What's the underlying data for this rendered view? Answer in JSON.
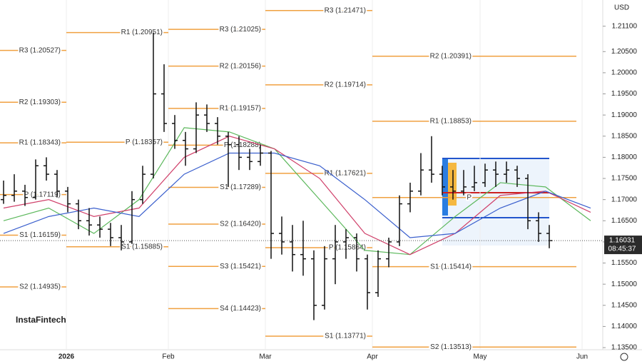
{
  "chart_data": {
    "type": "ohlc",
    "currency": "USD",
    "brand": "InstaFintech",
    "time_labels": [
      "2026",
      "Feb",
      "Mar",
      "Apr",
      "May",
      "Jun"
    ],
    "ylim": [
      1.1345,
      1.2172
    ],
    "yticks": [
      {
        "value": 1.211,
        "label": "1.21100"
      },
      {
        "value": 1.205,
        "label": "1.20500"
      },
      {
        "value": 1.2,
        "label": "1.20000"
      },
      {
        "value": 1.195,
        "label": "1.19500"
      },
      {
        "value": 1.19,
        "label": "1.19000"
      },
      {
        "value": 1.185,
        "label": "1.18500"
      },
      {
        "value": 1.18,
        "label": "1.18000"
      },
      {
        "value": 1.175,
        "label": "1.17500"
      },
      {
        "value": 1.17,
        "label": "1.17000"
      },
      {
        "value": 1.165,
        "label": "1.16500"
      },
      {
        "value": 1.16,
        "label": "1.16000"
      },
      {
        "value": 1.155,
        "label": "1.15500"
      },
      {
        "value": 1.15,
        "label": "1.15000"
      },
      {
        "value": 1.145,
        "label": "1.14500"
      },
      {
        "value": 1.14,
        "label": "1.14000"
      },
      {
        "value": 1.135,
        "label": "1.13500"
      }
    ],
    "last_price": {
      "value": 1.16031,
      "label": "1.16031",
      "countdown": "08:45:37"
    },
    "pivot_color": "#f0a040",
    "pivots": [
      [
        {
          "label": "R3 (1.20527)",
          "value": 1.20527
        },
        {
          "label": "R2 (1.19303)",
          "value": 1.19303
        },
        {
          "label": "R1 (1.18343)",
          "value": 1.18343
        },
        {
          "label": "P (1.17119)",
          "value": 1.17119
        },
        {
          "label": "S1 (1.16159)",
          "value": 1.16159
        },
        {
          "label": "S2 (1.14935)",
          "value": 1.14935
        }
      ],
      [
        {
          "label": "R1 (1.20951)",
          "value": 1.20951
        },
        {
          "label": "P (1.18357)",
          "value": 1.18357
        },
        {
          "label": "S1 (1.15885)",
          "value": 1.15885
        }
      ],
      [
        {
          "label": "R3 (1.21025)",
          "value": 1.21025
        },
        {
          "label": "R2 (1.20156)",
          "value": 1.20156
        },
        {
          "label": "R1 (1.19157)",
          "value": 1.19157
        },
        {
          "label": "P (1.18288)",
          "value": 1.18288
        },
        {
          "label": "S1 (1.17289)",
          "value": 1.17289
        },
        {
          "label": "S2 (1.16420)",
          "value": 1.1642
        },
        {
          "label": "S3 (1.15421)",
          "value": 1.15421
        },
        {
          "label": "S4 (1.14423)",
          "value": 1.14423
        }
      ],
      [
        {
          "label": "R3 (1.21471)",
          "value": 1.21471
        },
        {
          "label": "R2 (1.19714)",
          "value": 1.19714
        },
        {
          "label": "R1 (1.17621)",
          "value": 1.17621
        },
        {
          "label": "P (1.15864)",
          "value": 1.15864
        },
        {
          "label": "S1 (1.13771)",
          "value": 1.13771
        }
      ],
      [
        {
          "label": "R2 (1.20391)",
          "value": 1.20391
        },
        {
          "label": "R1 (1.18853)",
          "value": 1.18853
        },
        {
          "label": "P",
          "value": 1.1705
        },
        {
          "label": "S1 (1.15414)",
          "value": 1.15414
        },
        {
          "label": "S2 (1.13513)",
          "value": 1.13513
        }
      ]
    ],
    "ohlc": [
      [
        1.17,
        1.1745,
        1.169,
        1.171
      ],
      [
        1.171,
        1.176,
        1.1695,
        1.172
      ],
      [
        1.172,
        1.1735,
        1.1685,
        1.1705
      ],
      [
        1.1705,
        1.1795,
        1.17,
        1.178
      ],
      [
        1.178,
        1.18,
        1.1745,
        1.176
      ],
      [
        1.176,
        1.177,
        1.1705,
        1.172
      ],
      [
        1.172,
        1.173,
        1.167,
        1.169
      ],
      [
        1.169,
        1.17,
        1.163,
        1.165
      ],
      [
        1.165,
        1.168,
        1.1615,
        1.164
      ],
      [
        1.164,
        1.166,
        1.161,
        1.163
      ],
      [
        1.163,
        1.1645,
        1.159,
        1.161
      ],
      [
        1.161,
        1.164,
        1.158,
        1.16
      ],
      [
        1.16,
        1.172,
        1.1595,
        1.17
      ],
      [
        1.17,
        1.178,
        1.169,
        1.176
      ],
      [
        1.176,
        1.2095,
        1.175,
        1.195
      ],
      [
        1.195,
        1.202,
        1.186,
        1.188
      ],
      [
        1.188,
        1.19,
        1.182,
        1.184
      ],
      [
        1.184,
        1.186,
        1.178,
        1.182
      ],
      [
        1.182,
        1.193,
        1.181,
        1.19
      ],
      [
        1.19,
        1.1925,
        1.186,
        1.188
      ],
      [
        1.188,
        1.1895,
        1.183,
        1.185
      ],
      [
        1.185,
        1.186,
        1.173,
        1.183
      ],
      [
        1.183,
        1.185,
        1.177,
        1.18
      ],
      [
        1.18,
        1.182,
        1.177,
        1.179
      ],
      [
        1.179,
        1.183,
        1.178,
        1.181
      ],
      [
        1.181,
        1.1815,
        1.156,
        1.162
      ],
      [
        1.162,
        1.166,
        1.157,
        1.16
      ],
      [
        1.16,
        1.164,
        1.153,
        1.157
      ],
      [
        1.157,
        1.165,
        1.152,
        1.156
      ],
      [
        1.156,
        1.158,
        1.1415,
        1.145
      ],
      [
        1.145,
        1.159,
        1.144,
        1.156
      ],
      [
        1.156,
        1.164,
        1.15,
        1.16
      ],
      [
        1.16,
        1.163,
        1.156,
        1.161
      ],
      [
        1.161,
        1.162,
        1.153,
        1.156
      ],
      [
        1.156,
        1.157,
        1.144,
        1.148
      ],
      [
        1.148,
        1.158,
        1.147,
        1.156
      ],
      [
        1.156,
        1.161,
        1.154,
        1.16
      ],
      [
        1.16,
        1.171,
        1.159,
        1.169
      ],
      [
        1.169,
        1.174,
        1.167,
        1.172
      ],
      [
        1.172,
        1.181,
        1.171,
        1.177
      ],
      [
        1.177,
        1.185,
        1.174,
        1.176
      ],
      [
        1.176,
        1.178,
        1.171,
        1.173
      ],
      [
        1.173,
        1.177,
        1.17,
        1.172
      ],
      [
        1.172,
        1.177,
        1.171,
        1.173
      ],
      [
        1.173,
        1.178,
        1.172,
        1.174
      ],
      [
        1.174,
        1.1785,
        1.173,
        1.177
      ],
      [
        1.177,
        1.179,
        1.173,
        1.176
      ],
      [
        1.176,
        1.179,
        1.174,
        1.177
      ],
      [
        1.177,
        1.178,
        1.173,
        1.175
      ],
      [
        1.175,
        1.176,
        1.163,
        1.165
      ],
      [
        1.165,
        1.167,
        1.16,
        1.162
      ],
      [
        1.162,
        1.164,
        1.1585,
        1.1603
      ]
    ],
    "series": [
      {
        "color": "#5cb85c",
        "values": [
          1.165,
          1.168,
          1.162,
          1.17,
          1.187,
          1.186,
          1.182,
          1.17,
          1.158,
          1.157,
          1.166,
          1.174,
          1.173,
          1.165
        ]
      },
      {
        "color": "#d0406a",
        "values": [
          1.168,
          1.17,
          1.166,
          1.168,
          1.18,
          1.185,
          1.182,
          1.175,
          1.162,
          1.157,
          1.162,
          1.171,
          1.172,
          1.167
        ]
      },
      {
        "color": "#3a5fcd",
        "values": [
          1.162,
          1.166,
          1.168,
          1.166,
          1.176,
          1.181,
          1.181,
          1.178,
          1.17,
          1.161,
          1.162,
          1.168,
          1.172,
          1.168
        ]
      }
    ]
  }
}
